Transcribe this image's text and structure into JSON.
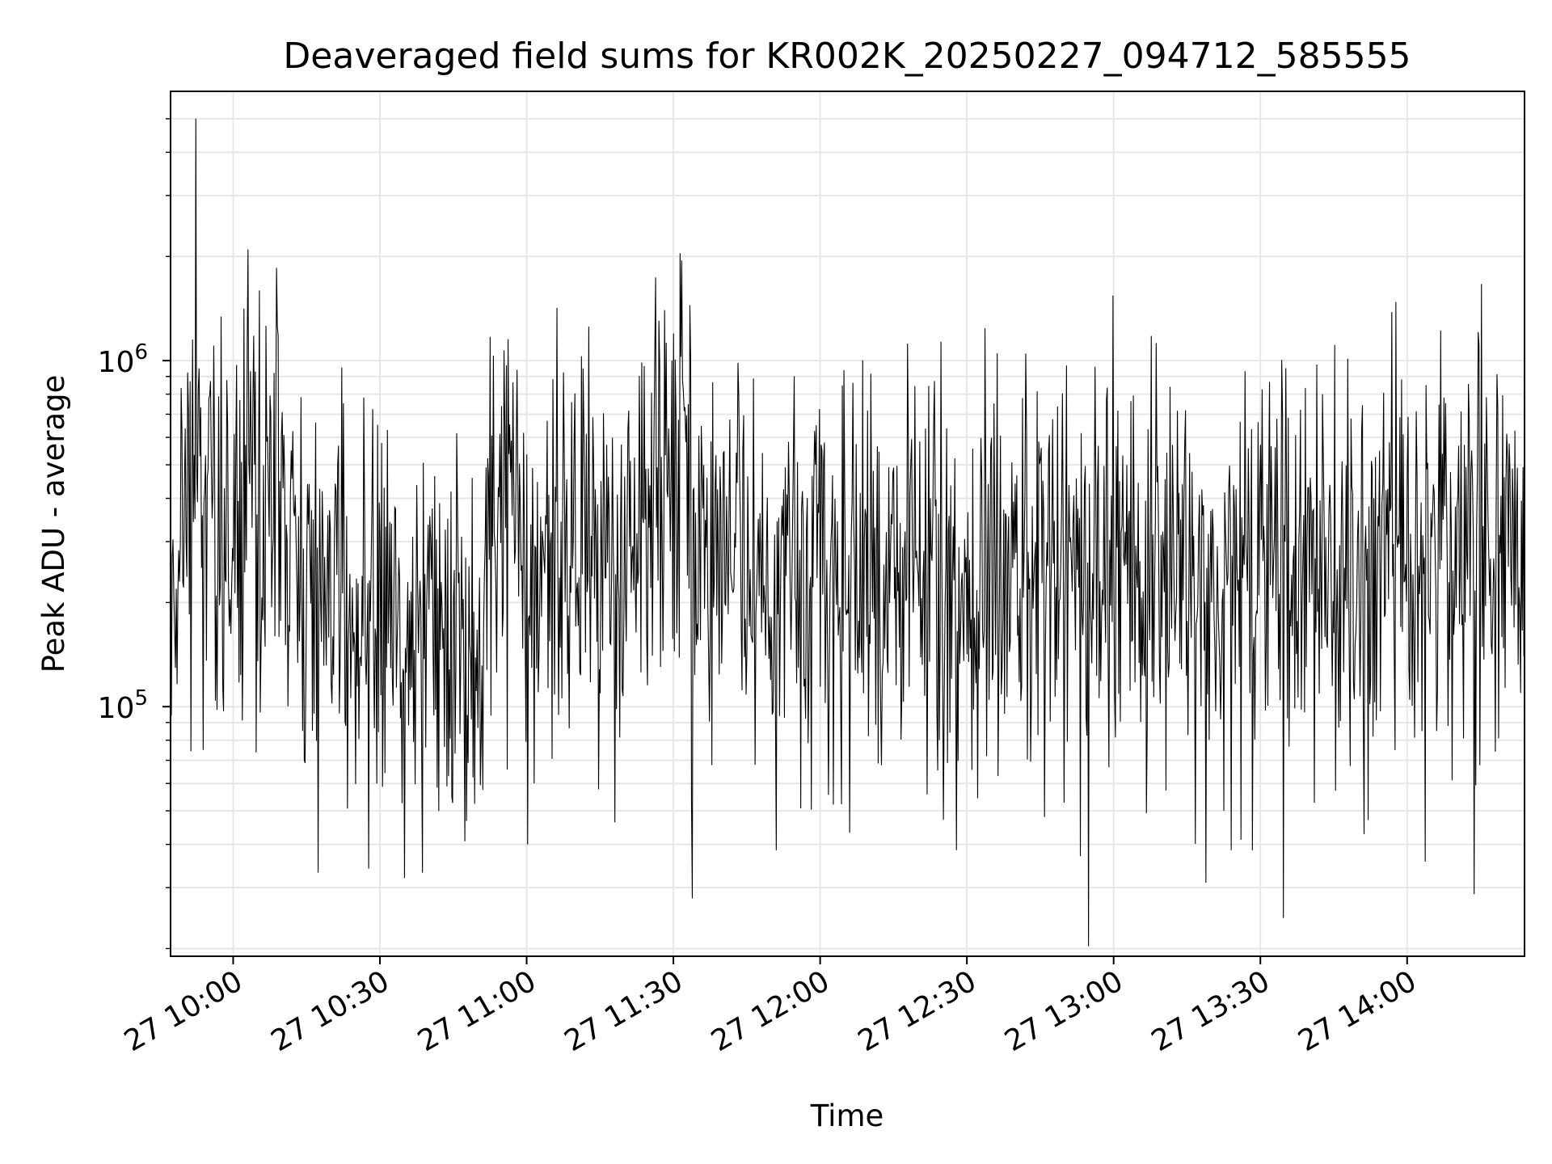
{
  "chart_data": {
    "type": "line",
    "title": "Deaveraged field sums for KR002K_20250227_094712_585555",
    "xlabel": "Time",
    "ylabel": "Peak ADU - average",
    "yscale": "log",
    "ylim": [
      19000,
      6000000
    ],
    "xlim": [
      "2025-02-27 09:47:12",
      "2025-02-27 14:24:00"
    ],
    "grid": true,
    "line_color": "#000000",
    "grid_color": "#e6e6e6",
    "x_ticks": [
      {
        "time": "2025-02-27 10:00",
        "label": "27 10:00"
      },
      {
        "time": "2025-02-27 10:30",
        "label": "27 10:30"
      },
      {
        "time": "2025-02-27 11:00",
        "label": "27 11:00"
      },
      {
        "time": "2025-02-27 11:30",
        "label": "27 11:30"
      },
      {
        "time": "2025-02-27 12:00",
        "label": "27 12:00"
      },
      {
        "time": "2025-02-27 12:30",
        "label": "27 12:30"
      },
      {
        "time": "2025-02-27 13:00",
        "label": "27 13:00"
      },
      {
        "time": "2025-02-27 13:30",
        "label": "27 13:30"
      },
      {
        "time": "2025-02-27 14:00",
        "label": "27 14:00"
      }
    ],
    "y_ticks": [
      {
        "value": 100000,
        "base": "10",
        "exp": "5"
      },
      {
        "value": 1000000,
        "base": "10",
        "exp": "6"
      }
    ],
    "series_meta": {
      "start": "2025-02-27 09:47:12",
      "interval_s": 10,
      "n_points": 1670
    },
    "segments": [
      {
        "start_min": 0,
        "end_min": 5,
        "median": 300000
      },
      {
        "start_min": 5,
        "end_min": 9,
        "median": 430000
      },
      {
        "start_min": 9,
        "end_min": 15,
        "median": 300000
      },
      {
        "start_min": 15,
        "end_min": 24,
        "median": 450000
      },
      {
        "start_min": 24,
        "end_min": 35,
        "median": 220000
      },
      {
        "start_min": 35,
        "end_min": 55,
        "median": 180000
      },
      {
        "start_min": 55,
        "end_min": 65,
        "median": 170000
      },
      {
        "start_min": 65,
        "end_min": 72,
        "median": 390000
      },
      {
        "start_min": 72,
        "end_min": 98,
        "median": 260000
      },
      {
        "start_min": 98,
        "end_min": 106,
        "median": 480000
      },
      {
        "start_min": 106,
        "end_min": 115,
        "median": 260000
      },
      {
        "start_min": 115,
        "end_min": 245,
        "median": 250000
      },
      {
        "start_min": 245,
        "end_min": 258,
        "median": 270000
      },
      {
        "start_min": 258,
        "end_min": 277,
        "median": 280000
      }
    ],
    "spread": 0.55,
    "noted_peaks": [
      {
        "time": "2025-02-27 09:52:20",
        "value": 5000000
      },
      {
        "time": "2025-02-27 09:51:40",
        "value": 1150000
      },
      {
        "time": "2025-02-27 10:06:40",
        "value": 1260000
      },
      {
        "time": "2025-02-27 11:06:10",
        "value": 1420000
      },
      {
        "time": "2025-02-27 11:31:50",
        "value": 880000
      },
      {
        "time": "2025-02-27 13:42:40",
        "value": 800000
      }
    ],
    "noted_dips": [
      {
        "time": "2025-02-27 10:35:00",
        "value": 32000
      },
      {
        "time": "2025-02-27 11:00:10",
        "value": 40000
      },
      {
        "time": "2025-02-27 11:51:00",
        "value": 38500
      },
      {
        "time": "2025-02-27 12:27:50",
        "value": 38500
      },
      {
        "time": "2025-02-27 12:53:10",
        "value": 37000
      },
      {
        "time": "2025-02-27 13:24:00",
        "value": 38500
      },
      {
        "time": "2025-02-27 13:28:20",
        "value": 38500
      },
      {
        "time": "2025-02-27 13:34:40",
        "value": 24500
      }
    ]
  }
}
